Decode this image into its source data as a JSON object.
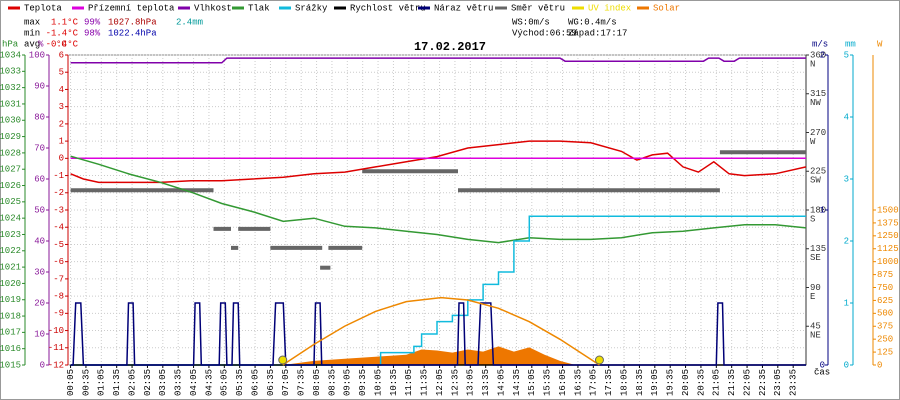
{
  "chart_data": {
    "type": "line",
    "title": "17.02.2017",
    "stats": [
      [
        "max",
        "1.1°C",
        "99%",
        "1027.8hPa",
        "2.4mm"
      ],
      [
        "min",
        "-1.4°C",
        "98%",
        "1022.4hPa"
      ],
      [
        "avg",
        "-0.4°C"
      ]
    ],
    "wind": [
      "WS:0m/s",
      "WG:0.4m/s"
    ],
    "sun": [
      "Východ:06:59",
      "Západ:17:17"
    ],
    "grid": true,
    "xlabel": "čas",
    "xlim": [
      0,
      1440
    ],
    "xticks": [
      {
        "value": 5,
        "label": "00:05"
      },
      {
        "value": 35,
        "label": "00:35"
      },
      {
        "value": 65,
        "label": "01:05"
      },
      {
        "value": 95,
        "label": "01:35"
      },
      {
        "value": 125,
        "label": "02:05"
      },
      {
        "value": 155,
        "label": "02:35"
      },
      {
        "value": 185,
        "label": "03:05"
      },
      {
        "value": 215,
        "label": "03:35"
      },
      {
        "value": 245,
        "label": "04:05"
      },
      {
        "value": 275,
        "label": "04:35"
      },
      {
        "value": 305,
        "label": "05:05"
      },
      {
        "value": 335,
        "label": "05:35"
      },
      {
        "value": 365,
        "label": "06:05"
      },
      {
        "value": 395,
        "label": "06:35"
      },
      {
        "value": 425,
        "label": "07:05"
      },
      {
        "value": 455,
        "label": "07:35"
      },
      {
        "value": 485,
        "label": "08:05"
      },
      {
        "value": 515,
        "label": "08:35"
      },
      {
        "value": 545,
        "label": "09:05"
      },
      {
        "value": 575,
        "label": "09:35"
      },
      {
        "value": 605,
        "label": "10:05"
      },
      {
        "value": 635,
        "label": "10:35"
      },
      {
        "value": 665,
        "label": "11:05"
      },
      {
        "value": 695,
        "label": "11:35"
      },
      {
        "value": 725,
        "label": "12:05"
      },
      {
        "value": 755,
        "label": "12:35"
      },
      {
        "value": 785,
        "label": "13:05"
      },
      {
        "value": 815,
        "label": "13:35"
      },
      {
        "value": 845,
        "label": "14:05"
      },
      {
        "value": 875,
        "label": "14:35"
      },
      {
        "value": 905,
        "label": "15:05"
      },
      {
        "value": 935,
        "label": "15:35"
      },
      {
        "value": 965,
        "label": "16:05"
      },
      {
        "value": 995,
        "label": "16:35"
      },
      {
        "value": 1025,
        "label": "17:05"
      },
      {
        "value": 1055,
        "label": "17:35"
      },
      {
        "value": 1085,
        "label": "18:05"
      },
      {
        "value": 1115,
        "label": "18:35"
      },
      {
        "value": 1145,
        "label": "19:05"
      },
      {
        "value": 1175,
        "label": "19:35"
      },
      {
        "value": 1205,
        "label": "20:05"
      },
      {
        "value": 1235,
        "label": "20:35"
      },
      {
        "value": 1265,
        "label": "21:05"
      },
      {
        "value": 1295,
        "label": "21:35"
      },
      {
        "value": 1325,
        "label": "22:05"
      },
      {
        "value": 1355,
        "label": "22:35"
      },
      {
        "value": 1385,
        "label": "23:05"
      },
      {
        "value": 1415,
        "label": "23:35"
      }
    ],
    "axes": [
      {
        "label": "hPa",
        "color": "#2a8a2a",
        "ylim": [
          1015,
          1034
        ],
        "yticks": [
          1015,
          1016,
          1017,
          1018,
          1019,
          1020,
          1021,
          1022,
          1023,
          1024,
          1025,
          1026,
          1027,
          1028,
          1029,
          1030,
          1031,
          1032,
          1033,
          1034
        ]
      },
      {
        "label": "%",
        "color": "#8a1a9a",
        "ylim": [
          0,
          100
        ],
        "yticks": [
          0,
          10,
          20,
          30,
          40,
          50,
          60,
          70,
          80,
          90,
          100
        ]
      },
      {
        "label": "°C",
        "color": "#cc0000",
        "ylim": [
          -12,
          6
        ],
        "yticks": [
          -12,
          -11,
          -10,
          -9,
          -8,
          -7,
          -6,
          -5,
          -4,
          -3,
          -2,
          -1,
          0,
          1,
          2,
          3,
          4,
          5,
          6
        ]
      },
      {
        "color": "#333333",
        "ylim": [
          0,
          360
        ],
        "yticks": [
          45,
          90,
          135,
          180,
          225,
          270,
          315,
          360
        ],
        "direction_labels": [
          "NE",
          "E",
          "SE",
          "S",
          "SW",
          "W",
          "NW",
          "N"
        ]
      },
      {
        "label": "m/s",
        "color": "#000080",
        "ylim": [
          0,
          2
        ],
        "yticks": [
          0,
          1,
          2
        ]
      },
      {
        "label": "mm",
        "color": "#00aacc",
        "ylim": [
          0,
          5
        ],
        "yticks": [
          0,
          1,
          2,
          3,
          4,
          5
        ]
      },
      {
        "label": "W",
        "color": "#ee8800",
        "ylim": [
          0,
          3000
        ],
        "yticks": [
          0,
          125,
          250,
          375,
          500,
          625,
          750,
          875,
          1000,
          1125,
          1250,
          1375,
          1500
        ]
      }
    ],
    "series": [
      {
        "name": "Teplota",
        "color": "#dd0000",
        "axis": 2,
        "mark": "line",
        "x": [
          5,
          30,
          60,
          120,
          180,
          240,
          300,
          360,
          420,
          480,
          540,
          600,
          660,
          720,
          780,
          840,
          900,
          960,
          1020,
          1080,
          1110,
          1140,
          1170,
          1200,
          1230,
          1260,
          1290,
          1320,
          1380,
          1440
        ],
        "values": [
          -0.9,
          -1.2,
          -1.4,
          -1.4,
          -1.4,
          -1.3,
          -1.3,
          -1.2,
          -1.1,
          -0.9,
          -0.8,
          -0.5,
          -0.2,
          0.1,
          0.6,
          0.8,
          1.0,
          1.0,
          0.9,
          0.4,
          -0.1,
          0.2,
          0.3,
          -0.5,
          -0.8,
          -0.2,
          -0.9,
          -1.0,
          -0.9,
          -0.5
        ]
      },
      {
        "name": "Přízemní teplota",
        "color": "#dd00dd",
        "axis": 2,
        "mark": "line",
        "x": [
          5,
          1440
        ],
        "values": [
          0,
          0
        ]
      },
      {
        "name": "Vlhkost",
        "color": "#8000aa",
        "axis": 1,
        "mark": "line",
        "x": [
          5,
          300,
          310,
          960,
          970,
          1240,
          1250,
          1270,
          1280,
          1300,
          1310,
          1440
        ],
        "values": [
          97.5,
          97.5,
          99,
          99,
          98,
          98,
          99,
          99,
          98,
          98,
          99,
          99
        ]
      },
      {
        "name": "Tlak",
        "color": "#339933",
        "axis": 0,
        "mark": "line",
        "x": [
          5,
          60,
          120,
          180,
          240,
          300,
          360,
          420,
          480,
          540,
          600,
          660,
          720,
          780,
          840,
          900,
          960,
          1020,
          1080,
          1140,
          1200,
          1260,
          1320,
          1380,
          1440
        ],
        "values": [
          1027.8,
          1027.3,
          1026.7,
          1026.2,
          1025.6,
          1024.9,
          1024.4,
          1023.8,
          1024.0,
          1023.5,
          1023.4,
          1023.2,
          1023.0,
          1022.7,
          1022.5,
          1022.8,
          1022.7,
          1022.7,
          1022.8,
          1023.1,
          1023.2,
          1023.4,
          1023.6,
          1023.6,
          1023.4
        ]
      },
      {
        "name": "Srážky",
        "color": "#11bbdd",
        "axis": 5,
        "mark": "line",
        "x": [
          5,
          610,
          610,
          675,
          675,
          690,
          690,
          720,
          720,
          750,
          750,
          780,
          780,
          810,
          810,
          840,
          840,
          870,
          870,
          900,
          900,
          1440
        ],
        "values": [
          0,
          0,
          0.2,
          0.2,
          0.3,
          0.3,
          0.5,
          0.5,
          0.7,
          0.7,
          0.8,
          0.8,
          1.05,
          1.05,
          1.3,
          1.3,
          1.5,
          1.5,
          2.0,
          2.0,
          2.4,
          2.4
        ]
      },
      {
        "name": "Rychlost větru",
        "color": "#000000",
        "axis": 4,
        "mark": "line",
        "x": [
          5,
          1440
        ],
        "values": [
          0,
          0
        ]
      },
      {
        "name": "Náraz větru",
        "color": "#000077",
        "axis": 4,
        "mark": "line",
        "x": [
          5,
          10,
          15,
          25,
          30,
          115,
          118,
          127,
          130,
          245,
          248,
          257,
          260,
          295,
          298,
          307,
          310,
          320,
          323,
          332,
          335,
          400,
          405,
          420,
          425,
          480,
          483,
          492,
          495,
          760,
          763,
          772,
          775,
          800,
          805,
          825,
          830,
          1265,
          1268,
          1277,
          1280,
          1440
        ],
        "values": [
          0,
          0,
          0.4,
          0.4,
          0,
          0,
          0.4,
          0.4,
          0,
          0,
          0.4,
          0.4,
          0,
          0,
          0.4,
          0.4,
          0,
          0,
          0.4,
          0.4,
          0,
          0,
          0.4,
          0.4,
          0,
          0,
          0.4,
          0.4,
          0,
          0,
          0.4,
          0.4,
          0,
          0,
          0.4,
          0.4,
          0,
          0,
          0.4,
          0.4,
          0,
          0
        ]
      },
      {
        "name": "Směr větru",
        "color": "#666666",
        "axis": 3,
        "mark": "segments",
        "x": [
          5,
          284,
          284,
          284,
          318,
          318,
          318,
          332,
          332,
          332,
          395,
          395,
          395,
          496,
          496,
          492,
          512,
          512,
          508,
          574,
          574,
          574,
          761,
          761,
          761,
          1272,
          1272,
          1272,
          1440
        ],
        "values": [
          203,
          203,
          null,
          158,
          158,
          null,
          136,
          136,
          null,
          158,
          158,
          null,
          136,
          136,
          null,
          113,
          113,
          null,
          136,
          136,
          null,
          225,
          225,
          null,
          203,
          203,
          null,
          247,
          247
        ]
      },
      {
        "name": "UV index",
        "color": "#eedd00",
        "text_color": "#eedd00",
        "axis": 6,
        "mark": "line",
        "x": [],
        "values": []
      },
      {
        "name": "Solar",
        "color": "#ee7700",
        "text_color": "#ee7700",
        "axis": 6,
        "mark": "area",
        "x": [
          420,
          480,
          540,
          600,
          660,
          690,
          720,
          750,
          780,
          810,
          840,
          870,
          900,
          930,
          960,
          990
        ],
        "values": [
          0,
          40,
          60,
          80,
          100,
          150,
          140,
          120,
          150,
          130,
          180,
          130,
          170,
          100,
          40,
          0
        ]
      },
      {
        "color": "#ee8800",
        "axis": 6,
        "mark": "line",
        "x": [
          419,
          480,
          540,
          600,
          660,
          728,
          780,
          840,
          900,
          960,
          1037
        ],
        "values": [
          0,
          199,
          376,
          519,
          614,
          652,
          629,
          549,
          419,
          249,
          0
        ]
      },
      {
        "color": "#eedd00",
        "axis": 6,
        "mark": "points",
        "x": [
          419,
          1037
        ],
        "values": [
          0,
          0
        ]
      }
    ]
  }
}
